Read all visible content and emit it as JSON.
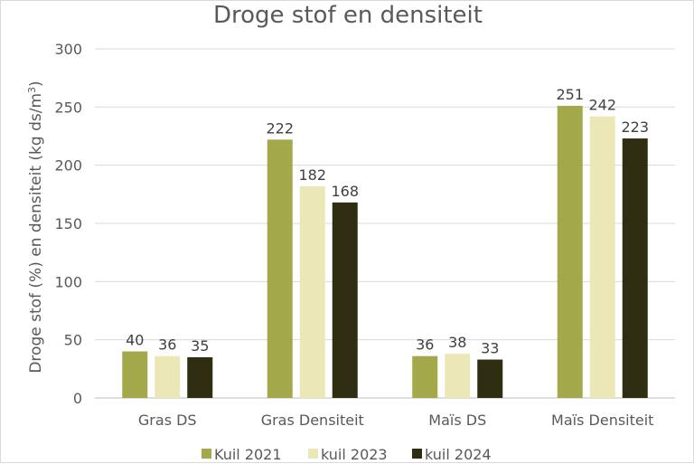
{
  "chart_data": {
    "type": "bar",
    "title": "Droge stof en densiteit",
    "ylabel": "Droge stof (%) en densiteit (kg ds/m",
    "ylabel_sup": "3",
    "ylabel_tail": ")",
    "xlabel": "",
    "ylim": [
      0,
      300
    ],
    "yticks": [
      0,
      50,
      100,
      150,
      200,
      250,
      300
    ],
    "grid": true,
    "legend_position": "bottom",
    "categories": [
      "Gras DS",
      "Gras Densiteit",
      "Maïs DS",
      "Maïs Densiteit"
    ],
    "series": [
      {
        "name": "Kuil 2021",
        "color": "#a3a84a",
        "values": [
          40,
          222,
          36,
          251
        ]
      },
      {
        "name": "kuil 2023",
        "color": "#ebe7b7",
        "values": [
          36,
          182,
          38,
          242
        ]
      },
      {
        "name": "kuil 2024",
        "color": "#2f2e12",
        "values": [
          35,
          168,
          33,
          223
        ]
      }
    ]
  }
}
